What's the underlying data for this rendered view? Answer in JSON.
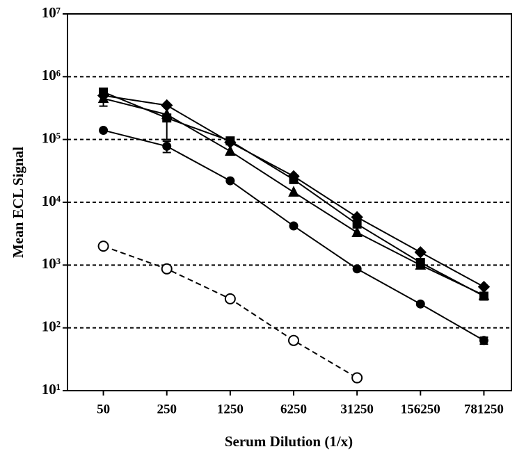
{
  "chart_data": {
    "type": "line",
    "x_label": "Serum Dilution (1/x)",
    "y_label": "Mean ECL Signal",
    "categories": [
      "50",
      "250",
      "1250",
      "6250",
      "31250",
      "156250",
      "781250"
    ],
    "log_y": true,
    "grid": true,
    "ylim": [
      10,
      10000000
    ],
    "yticks": [
      {
        "value": 10,
        "label": "10¹"
      },
      {
        "value": 100,
        "label": "10²"
      },
      {
        "value": 1000,
        "label": "10³"
      },
      {
        "value": 10000,
        "label": "10⁴"
      },
      {
        "value": 100000,
        "label": "10⁵"
      },
      {
        "value": 1000000,
        "label": "10⁶"
      },
      {
        "value": 10000000,
        "label": "10⁷"
      }
    ],
    "series": [
      {
        "marker": "diamond",
        "color": "#000000",
        "dash": false,
        "values": [
          500000,
          350000,
          90000,
          26000,
          5800,
          1600,
          450
        ]
      },
      {
        "marker": "square",
        "color": "#000000",
        "dash": false,
        "values": [
          570000,
          220000,
          95000,
          23000,
          4500,
          1100,
          320
        ],
        "errors": [
          null,
          120000,
          null,
          null,
          null,
          null,
          null
        ]
      },
      {
        "marker": "triangle",
        "color": "#000000",
        "dash": false,
        "values": [
          450000,
          250000,
          65000,
          14500,
          3300,
          1000,
          330
        ],
        "errors": [
          110000,
          null,
          null,
          null,
          null,
          null,
          null
        ]
      },
      {
        "marker": "circle",
        "color": "#000000",
        "dash": false,
        "values": [
          140000,
          78000,
          22000,
          4200,
          870,
          240,
          63
        ],
        "errors": [
          null,
          16000,
          null,
          null,
          null,
          null,
          8
        ]
      },
      {
        "marker": "open-circle",
        "color": "#000000",
        "dash": true,
        "values": [
          2000,
          870,
          290,
          63,
          16,
          null,
          null
        ]
      }
    ]
  }
}
